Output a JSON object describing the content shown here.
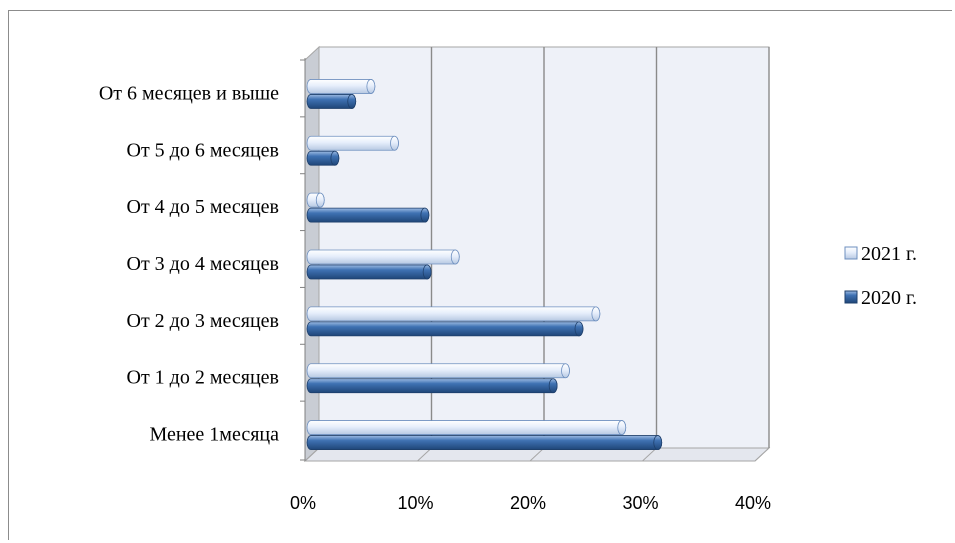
{
  "chart_data": {
    "type": "bar",
    "orientation": "horizontal",
    "categories": [
      "Менее 1месяца",
      "От 1 до 2 месяцев",
      "От 2 до 3 месяцев",
      "От 3 до 4 месяцев",
      "От 4 до 5 месяцев",
      "От 5 до 6 месяцев",
      "От 6 месяцев и выше"
    ],
    "series": [
      {
        "name": "2020 г.",
        "values": [
          31,
          21.7,
          24,
          10.5,
          10.3,
          2.3,
          3.8
        ],
        "color": "#3a6aa8"
      },
      {
        "name": "2021 г.",
        "values": [
          27.8,
          22.8,
          25.5,
          13,
          1,
          7.6,
          5.5
        ],
        "color": "#dfe9f7"
      }
    ],
    "x_ticks": [
      "0%",
      "10%",
      "20%",
      "30%",
      "40%"
    ],
    "xlim": [
      0,
      40
    ],
    "grid": true,
    "legend_position": "right",
    "style": "3d-cylinder"
  }
}
